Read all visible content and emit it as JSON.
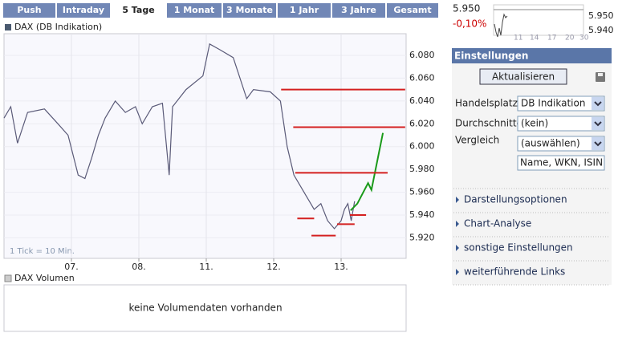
{
  "tabs": [
    "Push",
    "Intraday",
    "5 Tage",
    "1 Monat",
    "3 Monate",
    "1 Jahr",
    "3 Jahre",
    "Gesamt"
  ],
  "chart_data": {
    "type": "line",
    "note": "1 Tick = 10 Min.",
    "xlim": [
      0,
      5.964
    ],
    "xticks": [
      {
        "value": 1,
        "label": "07."
      },
      {
        "value": 2,
        "label": "08."
      },
      {
        "value": 3,
        "label": "11."
      },
      {
        "value": 4,
        "label": "12."
      },
      {
        "value": 5,
        "label": "13."
      }
    ],
    "ylim": [
      5.902,
      6.099
    ],
    "yticks": [
      {
        "value": 5.92,
        "label": "5.920"
      },
      {
        "value": 5.94,
        "label": "5.940"
      },
      {
        "value": 5.96,
        "label": "5.960"
      },
      {
        "value": 5.98,
        "label": "5.980"
      },
      {
        "value": 6.0,
        "label": "6.000"
      },
      {
        "value": 6.02,
        "label": "6.020"
      },
      {
        "value": 6.04,
        "label": "6.040"
      },
      {
        "value": 6.06,
        "label": "6.060"
      },
      {
        "value": 6.08,
        "label": "6.080"
      }
    ],
    "grid": true,
    "series": [
      {
        "name": "DAX (DB Indikation)",
        "color": "#5a5a78",
        "x": [
          0,
          0.1,
          0.2,
          0.35,
          0.6,
          0.8,
          0.95,
          1.1,
          1.2,
          1.3,
          1.4,
          1.5,
          1.65,
          1.8,
          1.95,
          2.05,
          2.2,
          2.35,
          2.45,
          2.5,
          2.7,
          2.95,
          3.05,
          3.2,
          3.4,
          3.6,
          3.7,
          3.95,
          4.1,
          4.2,
          4.3,
          4.45,
          4.6,
          4.7,
          4.8,
          4.9,
          5.0,
          5.05,
          5.1,
          5.15,
          5.2
        ],
        "values": [
          6.025,
          6.035,
          6.003,
          6.03,
          6.033,
          6.02,
          6.01,
          5.975,
          5.972,
          5.99,
          6.01,
          6.025,
          6.04,
          6.03,
          6.035,
          6.02,
          6.035,
          6.038,
          5.975,
          6.035,
          6.05,
          6.062,
          6.09,
          6.085,
          6.078,
          6.042,
          6.05,
          6.048,
          6.04,
          6.0,
          5.975,
          5.96,
          5.945,
          5.95,
          5.935,
          5.928,
          5.935,
          5.945,
          5.95,
          5.935,
          5.952
        ]
      },
      {
        "color": "#1a9a1a",
        "x": [
          5.14,
          5.24,
          5.4,
          5.45,
          5.62
        ],
        "values": [
          5.944,
          5.95,
          5.968,
          5.962,
          6.012
        ]
      }
    ],
    "levels_color": "#d42020",
    "levels": [
      {
        "value": 6.05,
        "x": [
          4.11,
          5.95
        ]
      },
      {
        "value": 6.017,
        "x": [
          4.29,
          5.95
        ]
      },
      {
        "value": 5.977,
        "x": [
          4.32,
          5.69
        ]
      },
      {
        "value": 5.937,
        "x": [
          4.35,
          4.6
        ]
      },
      {
        "value": 5.922,
        "x": [
          4.56,
          4.92
        ]
      },
      {
        "value": 5.932,
        "x": [
          4.94,
          5.2
        ]
      },
      {
        "value": 5.94,
        "x": [
          5.13,
          5.37
        ]
      }
    ]
  },
  "volume": {
    "legend": "DAX Volumen",
    "message": "keine Volumendaten vorhanden"
  },
  "mini": {
    "price": "5.950",
    "change": "-0,10%",
    "yticks": [
      "5.950",
      "5.940"
    ],
    "xticks": [
      "11",
      "14",
      "17",
      "20",
      "30"
    ]
  },
  "settings": {
    "title": "Einstellungen",
    "button": "Aktualisieren",
    "fields": [
      {
        "label": "Handelsplatz",
        "value": "DB Indikation"
      },
      {
        "label": "Durchschnitte",
        "value": "(kein)"
      },
      {
        "label": "Vergleich",
        "value": "(auswählen)"
      }
    ],
    "search_placeholder": "Name, WKN, ISIN",
    "links": [
      "Darstellungsoptionen",
      "Chart-Analyse",
      "sonstige Einstellungen",
      "weiterführende Links"
    ]
  }
}
